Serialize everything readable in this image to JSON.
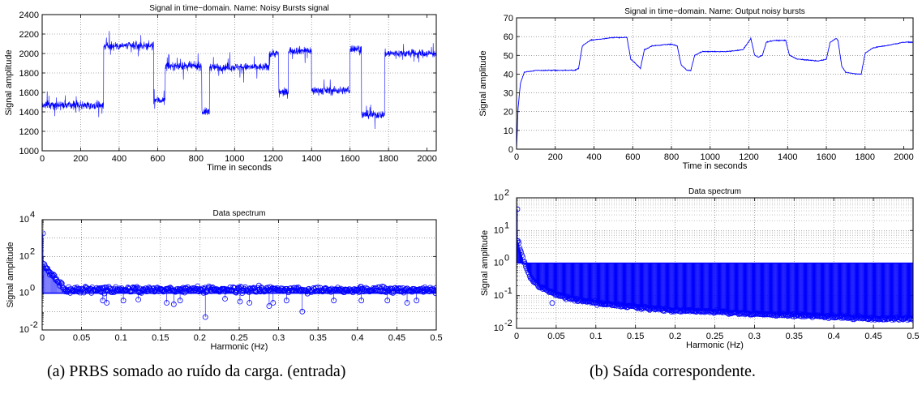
{
  "captions": {
    "a": "(a) PRBS somado ao ruído da carga. (entrada)",
    "b": "(b) Saída correspondente."
  },
  "series_color": "#0000ff",
  "chart_data": [
    {
      "id": "a_time",
      "type": "line",
      "title": "Signal in time−domain. Name: Noisy Bursts signal",
      "xlabel": "Time in seconds",
      "ylabel": "Signal amplitude",
      "xlim": [
        0,
        2048
      ],
      "ylim": [
        1000,
        2400
      ],
      "xticks": [
        0,
        200,
        400,
        600,
        800,
        1000,
        1200,
        1400,
        1600,
        1800,
        2000
      ],
      "yticks": [
        1000,
        1200,
        1400,
        1600,
        1800,
        2000,
        2200,
        2400
      ],
      "grid": true,
      "segments": [
        {
          "x": [
            0,
            320
          ],
          "y": 1470
        },
        {
          "x": [
            320,
            580
          ],
          "y": 2080
        },
        {
          "x": [
            580,
            640
          ],
          "y": 1520
        },
        {
          "x": [
            640,
            830
          ],
          "y": 1870
        },
        {
          "x": [
            830,
            870
          ],
          "y": 1400
        },
        {
          "x": [
            870,
            1180
          ],
          "y": 1860
        },
        {
          "x": [
            1180,
            1230
          ],
          "y": 2000
        },
        {
          "x": [
            1230,
            1280
          ],
          "y": 1600
        },
        {
          "x": [
            1280,
            1400
          ],
          "y": 2030
        },
        {
          "x": [
            1400,
            1600
          ],
          "y": 1620
        },
        {
          "x": [
            1600,
            1660
          ],
          "y": 2050
        },
        {
          "x": [
            1660,
            1780
          ],
          "y": 1370
        },
        {
          "x": [
            1780,
            2048
          ],
          "y": 2000
        }
      ]
    },
    {
      "id": "a_spec",
      "type": "scatter",
      "title": "Data spectrum",
      "xlabel": "Harmonic (Hz)",
      "ylabel": "Signal amplitude",
      "xlim": [
        0,
        0.5
      ],
      "ylog": true,
      "ylim_exp": [
        -2,
        4
      ],
      "xticks": [
        "0",
        "0.05",
        "0.1",
        "0.15",
        "0.2",
        "0.25",
        "0.3",
        "0.35",
        "0.4",
        "0.45",
        "0.5"
      ],
      "yticks_exp": [
        -2,
        0,
        2,
        4
      ],
      "grid": true,
      "baseline": 1,
      "peak": {
        "x": 0,
        "y": 1800
      },
      "outliers": [
        {
          "x": 0.077,
          "y": 0.4
        },
        {
          "x": 0.082,
          "y": 0.3
        },
        {
          "x": 0.103,
          "y": 0.4
        },
        {
          "x": 0.122,
          "y": 0.45
        },
        {
          "x": 0.158,
          "y": 0.3
        },
        {
          "x": 0.167,
          "y": 0.25
        },
        {
          "x": 0.175,
          "y": 0.4
        },
        {
          "x": 0.207,
          "y": 0.05
        },
        {
          "x": 0.232,
          "y": 0.5
        },
        {
          "x": 0.251,
          "y": 0.35
        },
        {
          "x": 0.263,
          "y": 0.3
        },
        {
          "x": 0.288,
          "y": 0.2
        },
        {
          "x": 0.293,
          "y": 0.3
        },
        {
          "x": 0.31,
          "y": 0.4
        },
        {
          "x": 0.33,
          "y": 0.1
        },
        {
          "x": 0.37,
          "y": 0.4
        },
        {
          "x": 0.405,
          "y": 0.4
        },
        {
          "x": 0.438,
          "y": 0.4
        },
        {
          "x": 0.463,
          "y": 0.3
        },
        {
          "x": 0.475,
          "y": 0.4
        }
      ]
    },
    {
      "id": "b_time",
      "type": "line",
      "title": "Signal in time−domain. Name: Output noisy bursts",
      "xlabel": "Time in seconds",
      "ylabel": "Signal amplitude",
      "xlim": [
        0,
        2048
      ],
      "ylim": [
        0,
        70
      ],
      "xticks": [
        0,
        200,
        400,
        600,
        800,
        1000,
        1200,
        1400,
        1600,
        1800,
        2000
      ],
      "yticks": [
        0,
        10,
        20,
        30,
        40,
        50,
        60,
        70
      ],
      "grid": true,
      "points": [
        [
          0,
          0
        ],
        [
          8,
          22
        ],
        [
          20,
          35
        ],
        [
          40,
          41
        ],
        [
          100,
          42
        ],
        [
          200,
          42
        ],
        [
          300,
          42
        ],
        [
          320,
          43
        ],
        [
          340,
          55
        ],
        [
          380,
          58
        ],
        [
          500,
          59.5
        ],
        [
          570,
          59.5
        ],
        [
          590,
          48
        ],
        [
          620,
          45
        ],
        [
          640,
          43
        ],
        [
          660,
          53
        ],
        [
          700,
          55
        ],
        [
          800,
          56
        ],
        [
          830,
          55
        ],
        [
          850,
          45
        ],
        [
          880,
          42
        ],
        [
          900,
          42
        ],
        [
          920,
          50
        ],
        [
          960,
          52
        ],
        [
          1080,
          52
        ],
        [
          1170,
          53
        ],
        [
          1190,
          56
        ],
        [
          1210,
          59
        ],
        [
          1230,
          50
        ],
        [
          1250,
          49
        ],
        [
          1270,
          50
        ],
        [
          1290,
          57
        ],
        [
          1330,
          58
        ],
        [
          1390,
          58
        ],
        [
          1410,
          50
        ],
        [
          1450,
          48
        ],
        [
          1560,
          47
        ],
        [
          1600,
          48
        ],
        [
          1620,
          57
        ],
        [
          1650,
          59
        ],
        [
          1660,
          58
        ],
        [
          1680,
          44
        ],
        [
          1700,
          41
        ],
        [
          1760,
          40
        ],
        [
          1780,
          40
        ],
        [
          1800,
          51
        ],
        [
          1840,
          54
        ],
        [
          1900,
          55
        ],
        [
          2000,
          57
        ],
        [
          2048,
          57
        ]
      ]
    },
    {
      "id": "b_spec",
      "type": "scatter",
      "title": "Data spectrum",
      "xlabel": "Harmonic (Hz)",
      "ylabel": "Signal amplitude",
      "xlim": [
        0,
        0.5
      ],
      "ylog": true,
      "ylim_exp": [
        -2,
        2
      ],
      "xticks": [
        "0",
        "0.05",
        "0.1",
        "0.15",
        "0.2",
        "0.25",
        "0.3",
        "0.35",
        "0.4",
        "0.45",
        "0.5"
      ],
      "yticks_exp": [
        -2,
        -1,
        0,
        1,
        2
      ],
      "grid": true,
      "baseline": 1,
      "peak": {
        "x": 0,
        "y": 45
      },
      "envelope": [
        [
          0.0,
          5
        ],
        [
          0.003,
          4
        ],
        [
          0.006,
          2
        ],
        [
          0.01,
          1
        ],
        [
          0.015,
          0.5
        ],
        [
          0.02,
          0.3
        ],
        [
          0.03,
          0.18
        ],
        [
          0.05,
          0.11
        ],
        [
          0.075,
          0.075
        ],
        [
          0.1,
          0.06
        ],
        [
          0.15,
          0.045
        ],
        [
          0.2,
          0.035
        ],
        [
          0.25,
          0.032
        ],
        [
          0.3,
          0.028
        ],
        [
          0.35,
          0.025
        ],
        [
          0.4,
          0.023
        ],
        [
          0.45,
          0.02
        ],
        [
          0.5,
          0.02
        ]
      ],
      "outliers": [
        {
          "x": 0.045,
          "y": 0.06
        }
      ]
    }
  ]
}
